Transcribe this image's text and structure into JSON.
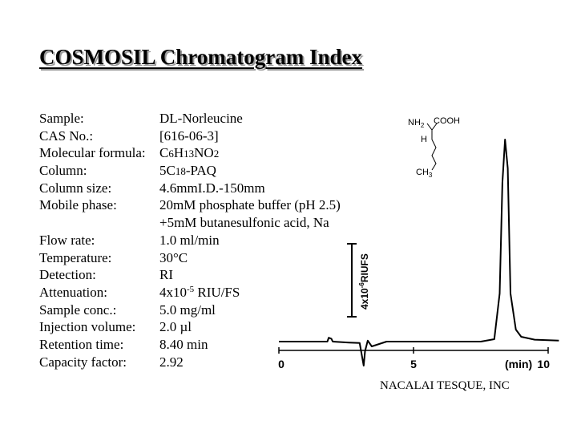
{
  "title": "COSMOSIL Chromatogram Index",
  "info": {
    "sample": {
      "label": "Sample:",
      "value": "DL-Norleucine"
    },
    "cas": {
      "label": "CAS No.:",
      "value": "[616-06-3]"
    },
    "formula": {
      "label": "Molecular formula:",
      "c": "C",
      "c_n": "6",
      "h": "H",
      "h_n": "13",
      "rest": "NO",
      "rest_n": "2"
    },
    "column": {
      "label": "Column:",
      "a": "5C",
      "b": "18",
      "c": "-PAQ"
    },
    "column_size": {
      "label": "Column size:",
      "value": "4.6mmI.D.-150mm"
    },
    "mobile_phase": {
      "label": "Mobile phase:",
      "line1": "20mM phosphate buffer (pH 2.5)",
      "line2": "+5mM butanesulfonic acid, Na"
    },
    "flow_rate": {
      "label": "Flow rate:",
      "value": "1.0 ml/min"
    },
    "temperature": {
      "label": "Temperature:",
      "value": "30°C"
    },
    "detection": {
      "label": "Detection:",
      "value": "RI"
    },
    "attenuation": {
      "label": "Attenuation:",
      "pre": "4x10",
      "exp": "-5",
      "post": " RIU/FS"
    },
    "sample_conc": {
      "label": "Sample conc.:",
      "value": "5.0 mg/ml"
    },
    "injection_volume": {
      "label": "Injection volume:",
      "value": "2.0 µl"
    },
    "retention_time": {
      "label": "Retention time:",
      "value": "8.40 min"
    },
    "capacity_factor": {
      "label": "Capacity factor:",
      "value": "2.92"
    }
  },
  "structure": {
    "nh2": "NH",
    "nh2_sub": "2",
    "cooh": "COOH",
    "h": "H",
    "ch3": "CH",
    "ch3_sub": "3"
  },
  "scale_bar": {
    "label": "4x10",
    "exp": "-6",
    "unit": "RIUFS"
  },
  "chart_data": {
    "type": "line",
    "xlabel": "(min)",
    "xticks": [
      0,
      5,
      10
    ],
    "xlim": [
      0,
      10
    ],
    "series": [
      {
        "x": [
          0,
          1.0,
          1.8,
          1.85,
          1.95,
          2.0,
          2.6,
          3.0,
          3.15,
          3.2,
          3.3,
          3.45,
          4.0,
          6.0,
          7.5,
          8.0,
          8.2,
          8.3,
          8.4,
          8.5,
          8.6,
          8.8,
          9.0,
          9.5,
          10.4
        ],
        "y": [
          0,
          0,
          0,
          0.08,
          0.06,
          0,
          -0.02,
          -0.03,
          -0.5,
          -0.2,
          0.02,
          -0.1,
          0,
          0,
          0,
          0.05,
          1.0,
          3.3,
          4.2,
          3.6,
          1.0,
          0.25,
          0.1,
          0.04,
          0.02
        ]
      }
    ]
  },
  "footer": "NACALAI TESQUE, INC"
}
